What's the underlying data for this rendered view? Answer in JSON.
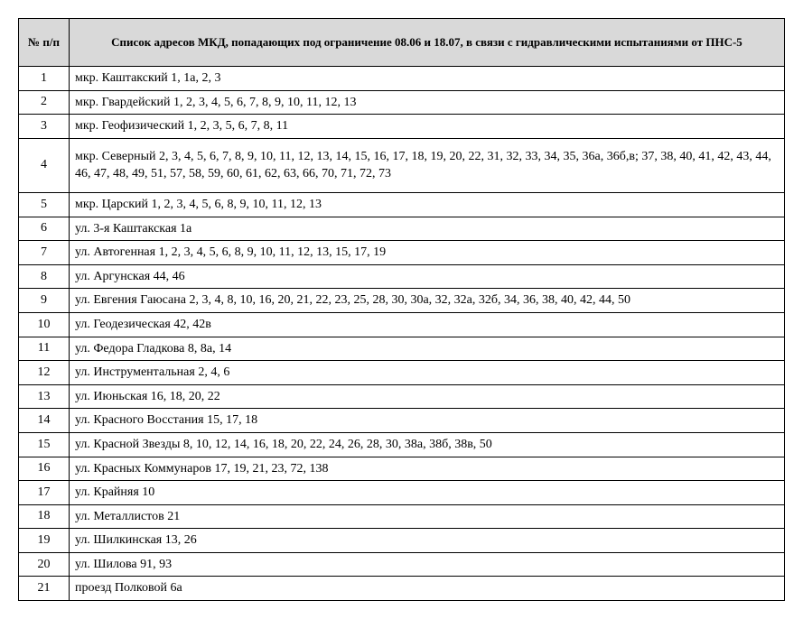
{
  "table": {
    "header_num": "№ п/п",
    "header_title": "Список адресов МКД, попадающих под ограничение 08.06 и 18.07, в связи с гидравлическими испытаниями  от ПНС-5",
    "rows": [
      {
        "num": "1",
        "addr": "мкр. Каштакский 1, 1а,  2,  3"
      },
      {
        "num": "2",
        "addr": "мкр. Гвардейский 1, 2, 3, 4, 5, 6, 7, 8, 9, 10, 11, 12, 13"
      },
      {
        "num": "3",
        "addr": "мкр. Геофизический 1, 2, 3, 5, 6, 7, 8, 11"
      },
      {
        "num": "4",
        "addr": "мкр. Северный 2, 3, 4, 5, 6, 7, 8, 9, 10, 11, 12, 13, 14, 15, 16, 17, 18, 19, 20, 22, 31, 32, 33, 34, 35, 36а, 36б,в; 37, 38, 40, 41, 42, 43, 44, 46, 47, 48, 49, 51, 57, 58, 59, 60, 61, 62, 63, 66, 70, 71, 72, 73",
        "tall": true
      },
      {
        "num": "5",
        "addr": "мкр. Царский 1, 2, 3, 4, 5, 6, 8, 9, 10, 11, 12, 13"
      },
      {
        "num": "6",
        "addr": "ул. 3-я Каштакская 1а"
      },
      {
        "num": "7",
        "addr": "ул. Автогенная 1, 2, 3, 4, 5, 6, 8, 9, 10, 11, 12, 13, 15, 17, 19"
      },
      {
        "num": "8",
        "addr": "ул. Аргунская 44, 46"
      },
      {
        "num": "9",
        "addr": "ул. Евгения Гаюсана 2, 3, 4, 8, 10, 16, 20, 21, 22, 23, 25, 28, 30, 30а, 32, 32а, 32б, 34, 36, 38, 40, 42, 44, 50"
      },
      {
        "num": "10",
        "addr": "ул. Геодезическая 42, 42в"
      },
      {
        "num": "11",
        "addr": "ул. Федора Гладкова 8, 8а, 14"
      },
      {
        "num": "12",
        "addr": "ул. Инструментальная 2, 4, 6"
      },
      {
        "num": "13",
        "addr": "ул. Июньская 16, 18, 20, 22"
      },
      {
        "num": "14",
        "addr": "ул. Красного Восстания 15, 17, 18"
      },
      {
        "num": "15",
        "addr": "ул. Красной Звезды 8, 10, 12, 14, 16, 18, 20, 22, 24, 26, 28, 30, 38а, 38б, 38в, 50"
      },
      {
        "num": "16",
        "addr": "ул. Красных Коммунаров 17, 19, 21, 23, 72, 138"
      },
      {
        "num": "17",
        "addr": "ул. Крайняя 10"
      },
      {
        "num": "18",
        "addr": "ул. Металлистов 21"
      },
      {
        "num": "19",
        "addr": "ул. Шилкинская 13, 26"
      },
      {
        "num": "20",
        "addr": "ул. Шилова 91, 93"
      },
      {
        "num": "21",
        "addr": "проезд Полковой 6а"
      }
    ]
  }
}
